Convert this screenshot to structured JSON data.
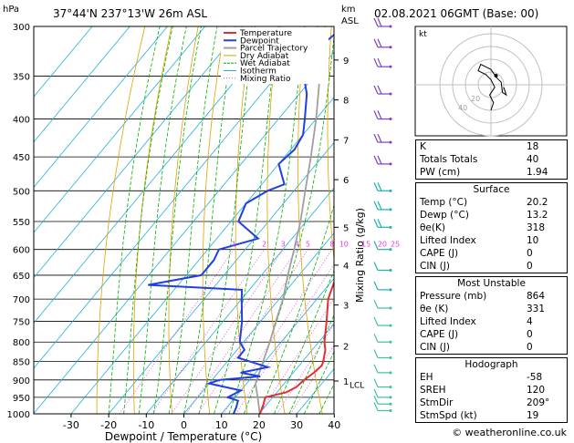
{
  "header": {
    "location": "37°44'N  237°13'W  26m  ASL",
    "datetime": "02.08.2021  06GMT  (Base: 00)",
    "hpa_label": "hPa",
    "km_label": "km",
    "asl_label": "ASL"
  },
  "chart_data": {
    "type": "skew-t",
    "xlabel": "Dewpoint / Temperature (°C)",
    "ylabel_right": "Mixing Ratio (g/kg)",
    "x_ticks": [
      -30,
      -20,
      -10,
      0,
      10,
      20,
      30,
      40
    ],
    "pressure_levels": [
      300,
      350,
      400,
      450,
      500,
      550,
      600,
      650,
      700,
      750,
      800,
      850,
      900,
      950,
      1000
    ],
    "km_ticks": [
      {
        "label": "9",
        "p": 333
      },
      {
        "label": "8",
        "p": 377
      },
      {
        "label": "7",
        "p": 427
      },
      {
        "label": "6",
        "p": 483
      },
      {
        "label": "5",
        "p": 560
      },
      {
        "label": "4",
        "p": 630
      },
      {
        "label": "3",
        "p": 713
      },
      {
        "label": "2",
        "p": 810
      },
      {
        "label": "1",
        "p": 903
      }
    ],
    "lcl_label": "LCL",
    "lcl_p": 912,
    "mixing_ratio_labels": [
      "1",
      "2",
      "3",
      "4",
      "5",
      "8",
      "10",
      "15",
      "20",
      "25"
    ],
    "legend": [
      {
        "name": "Temperature",
        "color": "#e03030"
      },
      {
        "name": "Dewpoint",
        "color": "#2040e0"
      },
      {
        "name": "Parcel Trajectory",
        "color": "#a0a0a0"
      },
      {
        "name": "Dry Adiabat",
        "color": "#e0a000"
      },
      {
        "name": "Wet Adiabat",
        "color": "#00b000"
      },
      {
        "name": "Isotherm",
        "color": "#20b0e0"
      },
      {
        "name": "Mixing Ratio",
        "color": "#e040e0"
      }
    ],
    "temperature": [
      {
        "p": 1000,
        "t": 20.2
      },
      {
        "p": 980,
        "t": 19.5
      },
      {
        "p": 960,
        "t": 18.5
      },
      {
        "p": 950,
        "t": 18.0
      },
      {
        "p": 935,
        "t": 22.5
      },
      {
        "p": 920,
        "t": 24.0
      },
      {
        "p": 900,
        "t": 24.5
      },
      {
        "p": 880,
        "t": 25.5
      },
      {
        "p": 860,
        "t": 26.0
      },
      {
        "p": 850,
        "t": 25.5
      },
      {
        "p": 820,
        "t": 23.5
      },
      {
        "p": 800,
        "t": 21.5
      },
      {
        "p": 750,
        "t": 17.5
      },
      {
        "p": 700,
        "t": 13.0
      },
      {
        "p": 650,
        "t": 10.0
      },
      {
        "p": 600,
        "t": 6.5
      },
      {
        "p": 550,
        "t": 1.5
      },
      {
        "p": 500,
        "t": -5.0
      },
      {
        "p": 450,
        "t": -11.5
      },
      {
        "p": 400,
        "t": -19.0
      },
      {
        "p": 350,
        "t": -28.5
      },
      {
        "p": 300,
        "t": -38.0
      }
    ],
    "dewpoint": [
      {
        "p": 1000,
        "t": 13.2
      },
      {
        "p": 980,
        "t": 12.5
      },
      {
        "p": 960,
        "t": 11.5
      },
      {
        "p": 950,
        "t": 8.0
      },
      {
        "p": 930,
        "t": 10.0
      },
      {
        "p": 910,
        "t": 0.0
      },
      {
        "p": 900,
        "t": 2.0
      },
      {
        "p": 890,
        "t": 12.0
      },
      {
        "p": 880,
        "t": 6.0
      },
      {
        "p": 865,
        "t": 12.0
      },
      {
        "p": 850,
        "t": 6.0
      },
      {
        "p": 840,
        "t": 2.0
      },
      {
        "p": 820,
        "t": 2.0
      },
      {
        "p": 800,
        "t": -1.0
      },
      {
        "p": 750,
        "t": -5.0
      },
      {
        "p": 700,
        "t": -10.0
      },
      {
        "p": 680,
        "t": -12.0
      },
      {
        "p": 670,
        "t": -38.0
      },
      {
        "p": 650,
        "t": -26.0
      },
      {
        "p": 620,
        "t": -26.0
      },
      {
        "p": 600,
        "t": -27.0
      },
      {
        "p": 580,
        "t": -19.0
      },
      {
        "p": 550,
        "t": -28.0
      },
      {
        "p": 520,
        "t": -30.0
      },
      {
        "p": 500,
        "t": -27.0
      },
      {
        "p": 490,
        "t": -24.0
      },
      {
        "p": 460,
        "t": -30.0
      },
      {
        "p": 440,
        "t": -29.0
      },
      {
        "p": 420,
        "t": -30.0
      },
      {
        "p": 400,
        "t": -33.0
      },
      {
        "p": 370,
        "t": -38.0
      },
      {
        "p": 345,
        "t": -44.0
      },
      {
        "p": 330,
        "t": -46.0
      },
      {
        "p": 300,
        "t": -43.0
      }
    ],
    "parcel": [
      {
        "p": 1000,
        "t": 20.2
      },
      {
        "p": 950,
        "t": 16.0
      },
      {
        "p": 912,
        "t": 12.5
      },
      {
        "p": 850,
        "t": 9.5
      },
      {
        "p": 800,
        "t": 7.0
      },
      {
        "p": 750,
        "t": 4.0
      },
      {
        "p": 700,
        "t": 1.0
      },
      {
        "p": 650,
        "t": -3.0
      },
      {
        "p": 600,
        "t": -7.0
      },
      {
        "p": 550,
        "t": -11.5
      },
      {
        "p": 500,
        "t": -17.0
      },
      {
        "p": 450,
        "t": -23.0
      },
      {
        "p": 400,
        "t": -30.0
      },
      {
        "p": 350,
        "t": -38.5
      },
      {
        "p": 300,
        "t": -48.0
      }
    ],
    "hodograph": {
      "label": "kt",
      "ring_labels": [
        "20",
        "40"
      ],
      "trace": [
        [
          0,
          -20
        ],
        [
          2,
          -14
        ],
        [
          -1,
          -8
        ],
        [
          3,
          -2
        ],
        [
          0,
          4
        ],
        [
          -4,
          8
        ],
        [
          -10,
          11
        ],
        [
          -8,
          16
        ],
        [
          0,
          12
        ],
        [
          4,
          6
        ],
        [
          8,
          2
        ],
        [
          9,
          -6
        ],
        [
          12,
          -8
        ],
        [
          10,
          -2
        ]
      ],
      "storm_motion_deg": 209,
      "storm_motion_kt": 19
    }
  },
  "indices": [
    {
      "label": "K",
      "value": "18"
    },
    {
      "label": "Totals Totals",
      "value": "40"
    },
    {
      "label": "PW (cm)",
      "value": "1.94"
    }
  ],
  "surface": {
    "title": "Surface",
    "rows": [
      {
        "label": "Temp (°C)",
        "value": "20.2"
      },
      {
        "label": "Dewp (°C)",
        "value": "13.2"
      },
      {
        "label": "θe(K)",
        "value": "318"
      },
      {
        "label": "Lifted Index",
        "value": "10"
      },
      {
        "label": "CAPE (J)",
        "value": "0"
      },
      {
        "label": "CIN (J)",
        "value": "0"
      }
    ]
  },
  "most_unstable": {
    "title": "Most Unstable",
    "rows": [
      {
        "label": "Pressure (mb)",
        "value": "864"
      },
      {
        "label": "θe (K)",
        "value": "331"
      },
      {
        "label": "Lifted Index",
        "value": "4"
      },
      {
        "label": "CAPE (J)",
        "value": "0"
      },
      {
        "label": "CIN (J)",
        "value": "0"
      }
    ]
  },
  "hodograph_table": {
    "title": "Hodograph",
    "rows": [
      {
        "label": "EH",
        "value": "-58"
      },
      {
        "label": "SREH",
        "value": "120"
      },
      {
        "label": "StmDir",
        "value": "209°"
      },
      {
        "label": "StmSpd (kt)",
        "value": "19"
      }
    ]
  },
  "footer": {
    "credit": "© weatheronline.co.uk"
  },
  "colors": {
    "temperature": "#e03030",
    "dewpoint": "#2040e0",
    "parcel": "#a0a0a0",
    "dry_adiabat": "#e0a000",
    "wet_adiabat": "#00b000",
    "isotherm": "#20b0e0",
    "mixing_ratio": "#e040e0",
    "wind_barbs": "#8040c0"
  }
}
